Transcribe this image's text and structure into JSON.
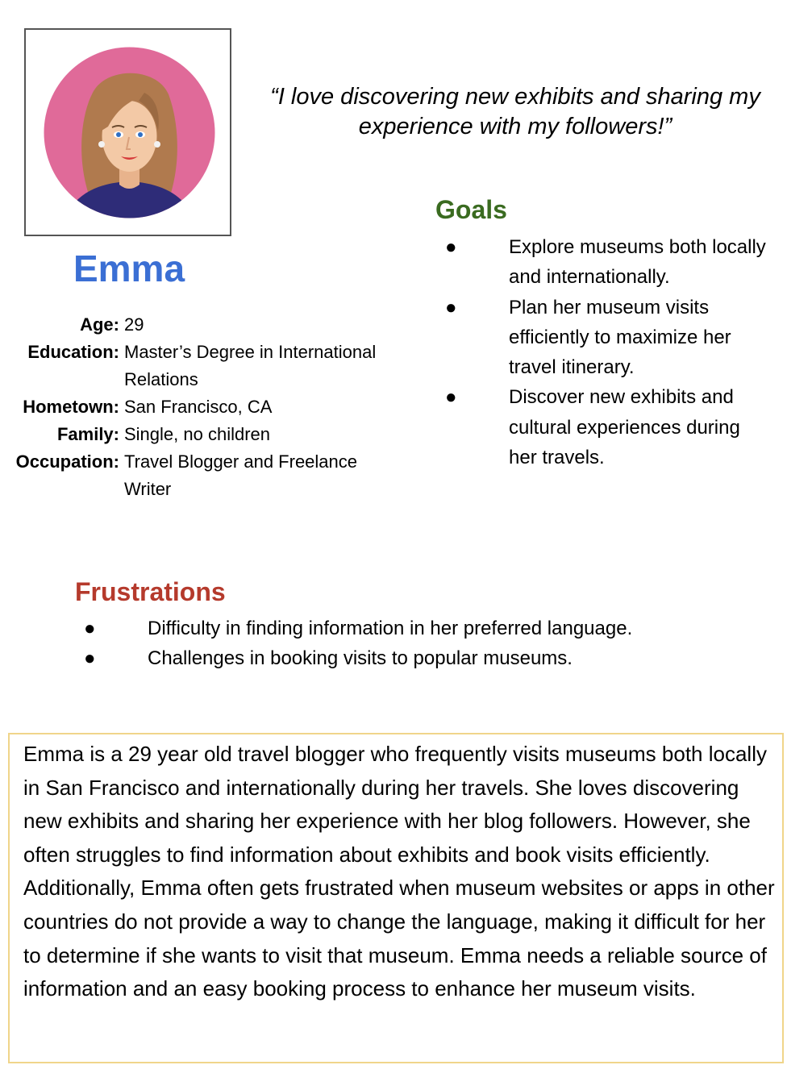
{
  "persona": {
    "name": "Emma",
    "quote": "“I love discovering new exhibits and sharing my experience with my followers!”",
    "details": [
      {
        "label": "Age:",
        "value": "29"
      },
      {
        "label": "Education:",
        "value": "Master’s Degree in International Relations"
      },
      {
        "label": "Hometown:",
        "value": "San Francisco, CA"
      },
      {
        "label": "Family:",
        "value": "Single, no children"
      },
      {
        "label": "Occupation:",
        "value": "Travel Blogger and Freelance Writer"
      }
    ]
  },
  "goals": {
    "title": "Goals",
    "bullet": "●",
    "items": [
      "Explore museums both locally and internationally.",
      "Plan her museum visits efficiently to maximize her travel itinerary.",
      "Discover new exhibits and cultural experiences during her travels."
    ]
  },
  "frustrations": {
    "title": "Frustrations",
    "bullet": "●",
    "items": [
      "Difficulty in finding information in her preferred language.",
      "Challenges in booking visits to popular museums."
    ]
  },
  "bio": "Emma is a 29 year old travel blogger who frequently visits museums both locally in San Francisco and internationally during her travels. She loves discovering new exhibits and sharing her experience with her blog followers. However, she often struggles to find information about exhibits and book visits efficiently. Additionally, Emma often gets frustrated when museum websites or apps in other countries do not provide a way  to change the language, making it difficult for her to determine if she wants to visit that museum. Emma needs a reliable source of information and an easy booking process to enhance her museum visits.",
  "colors": {
    "name": "#3b6fd4",
    "goals_title": "#3a6b20",
    "frustrations_title": "#b53a2c",
    "bio_border": "#f0d58a",
    "avatar_bg": "#e06a99"
  }
}
